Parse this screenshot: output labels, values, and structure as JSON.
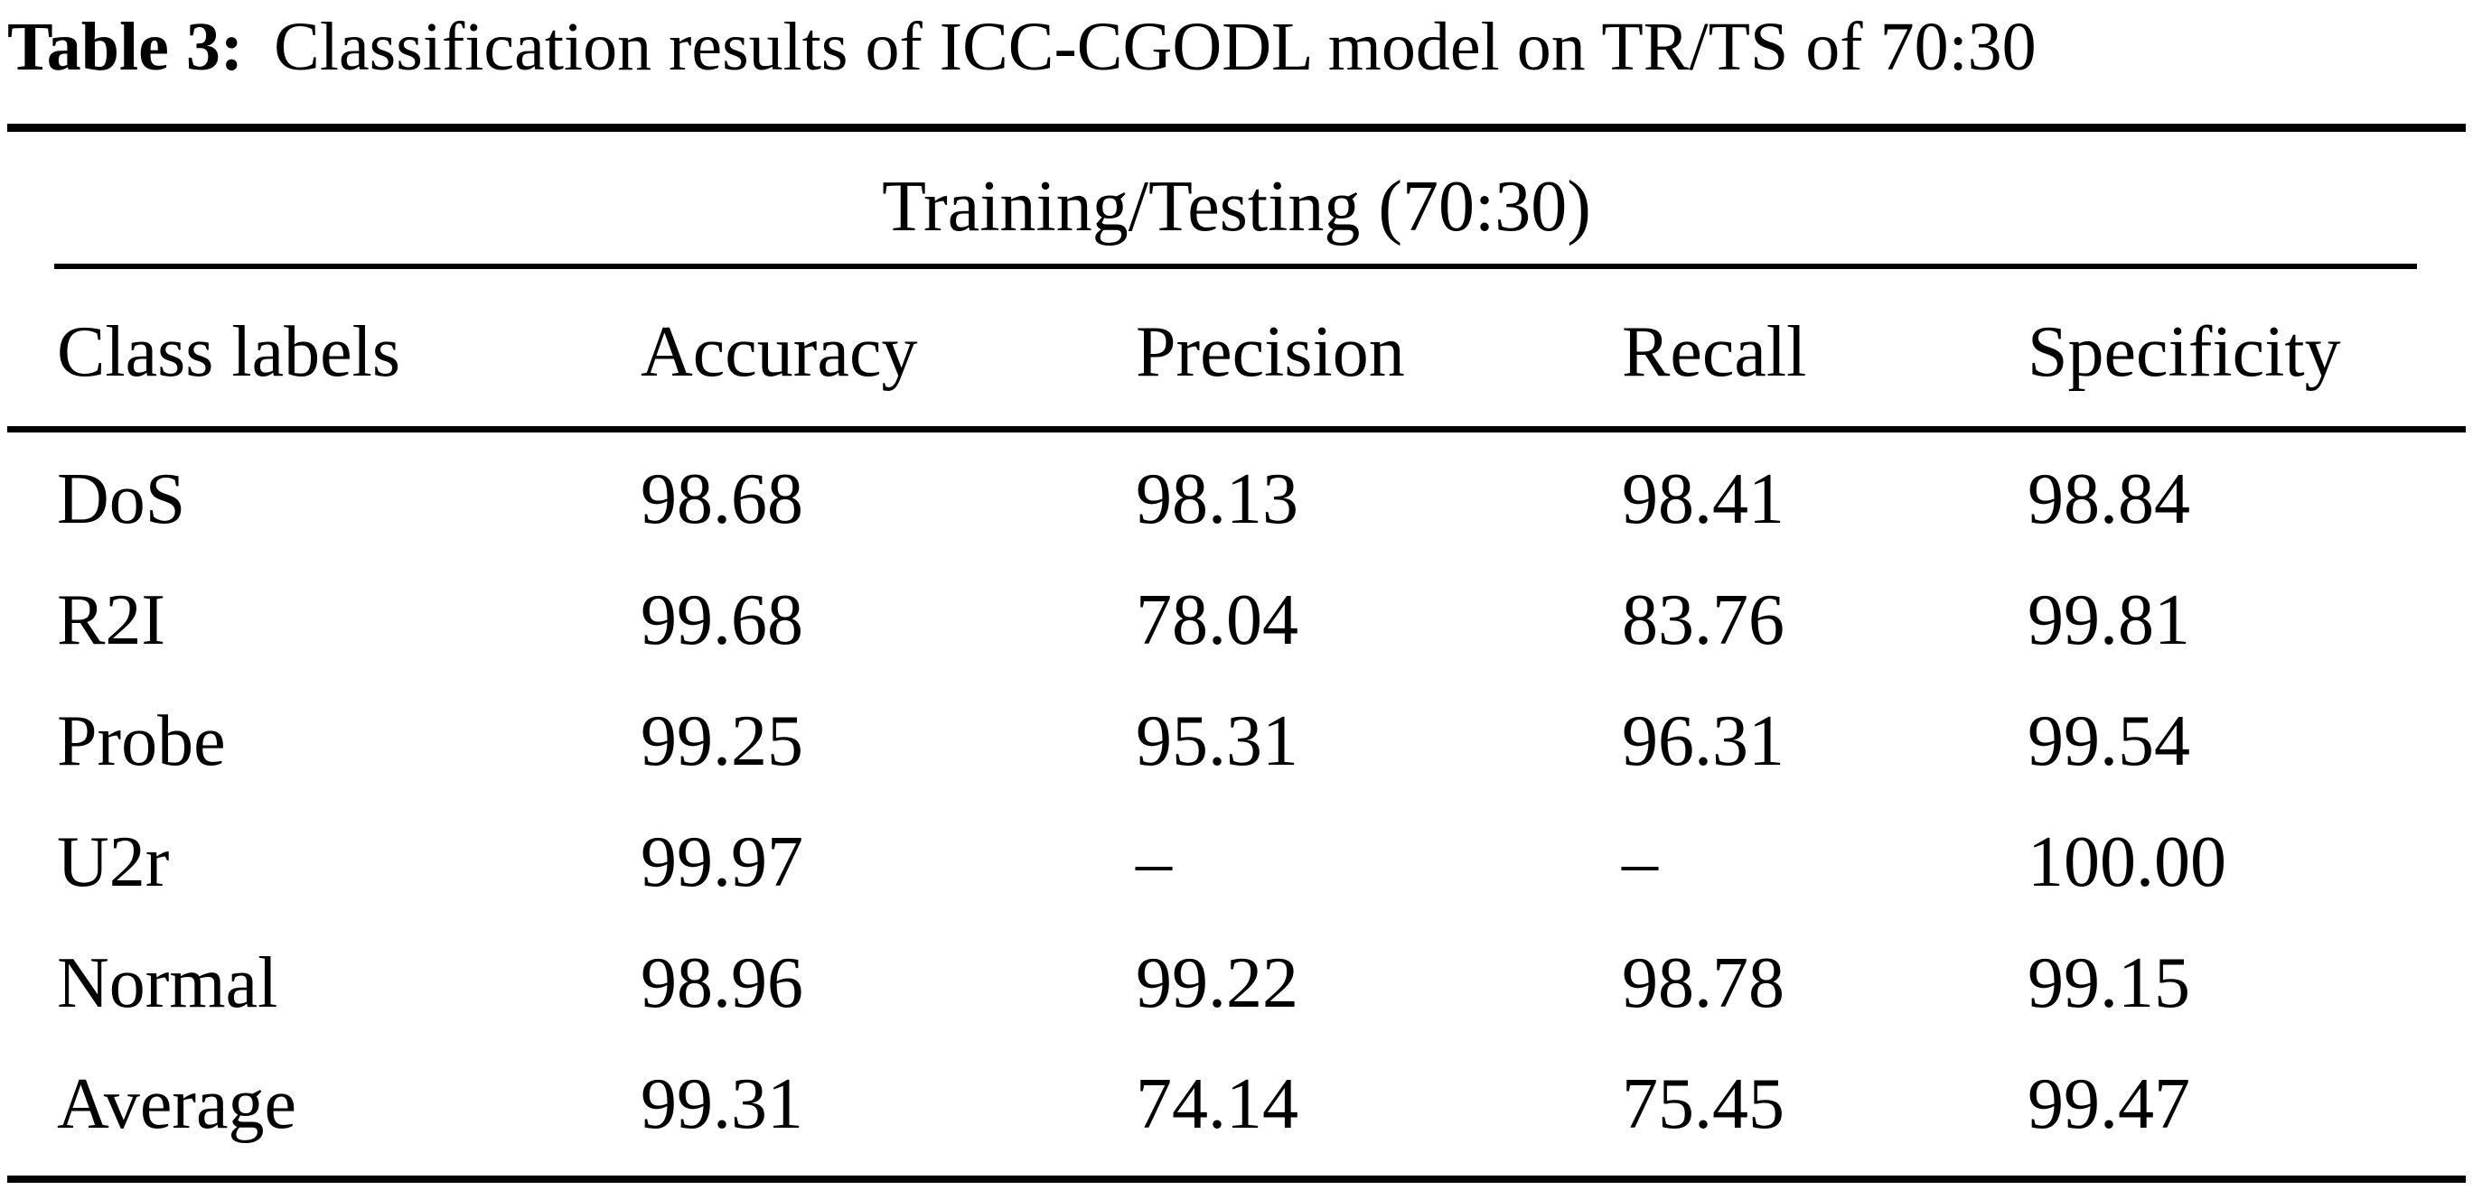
{
  "caption": {
    "label": "Table 3:",
    "text": "Classification results of ICC-CGODL model on TR/TS of 70:30"
  },
  "table": {
    "spanning_header": "Training/Testing (70:30)",
    "columns": [
      "Class labels",
      "Accuracy",
      "Precision",
      "Recall",
      "Specificity"
    ],
    "rows": [
      {
        "label": "DoS",
        "accuracy": "98.68",
        "precision": "98.13",
        "recall": "98.41",
        "specificity": "98.84"
      },
      {
        "label": "R2I",
        "accuracy": "99.68",
        "precision": "78.04",
        "recall": "83.76",
        "specificity": "99.81"
      },
      {
        "label": "Probe",
        "accuracy": "99.25",
        "precision": "95.31",
        "recall": "96.31",
        "specificity": "99.54"
      },
      {
        "label": "U2r",
        "accuracy": "99.97",
        "precision": "–",
        "recall": "–",
        "specificity": "100.00"
      },
      {
        "label": "Normal",
        "accuracy": "98.96",
        "precision": "99.22",
        "recall": "98.78",
        "specificity": "99.15"
      },
      {
        "label": "Average",
        "accuracy": "99.31",
        "precision": "74.14",
        "recall": "75.45",
        "specificity": "99.47"
      }
    ],
    "colors": {
      "text": "#000000",
      "background": "#ffffff",
      "rule": "#000000"
    }
  }
}
